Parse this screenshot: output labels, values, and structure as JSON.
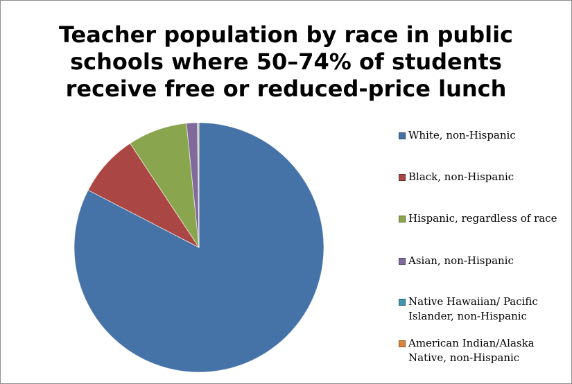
{
  "chart_data": {
    "type": "pie",
    "title": "Teacher population by race in public\nschools where 50–74% of students\nreceive free or reduced-price lunch",
    "legend_position": "right",
    "slices": [
      {
        "label": "White, non-Hispanic",
        "value": 82.6,
        "color": "#4572a7"
      },
      {
        "label": "Black, non-Hispanic",
        "value": 8.1,
        "color": "#aa4643"
      },
      {
        "label": "Hispanic, regardless of race",
        "value": 7.7,
        "color": "#89a54e"
      },
      {
        "label": "Asian, non-Hispanic",
        "value": 1.4,
        "color": "#80699b"
      },
      {
        "label": "Native Hawaiian/ Pacific Islander, non-Hispanic",
        "value": 0.1,
        "color": "#3d96ae"
      },
      {
        "label": "American Indian/Alaska Native, non-Hispanic",
        "value": 0.1,
        "color": "#db843d"
      }
    ]
  }
}
